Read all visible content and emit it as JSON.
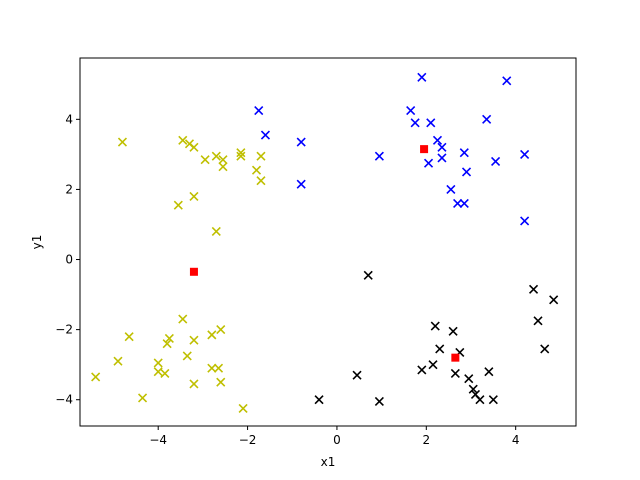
{
  "chart_data": {
    "type": "scatter",
    "xlabel": "x1",
    "ylabel": "y1",
    "xlim": [
      -5.75,
      5.35
    ],
    "ylim": [
      -4.75,
      5.75
    ],
    "xticks": [
      -4,
      -2,
      0,
      2,
      4
    ],
    "yticks": [
      -4,
      -2,
      0,
      2,
      4
    ],
    "grid": false,
    "series": [
      {
        "color": "#bfbf00",
        "marker": "x",
        "points": [
          [
            -4.8,
            3.35
          ],
          [
            -3.45,
            3.4
          ],
          [
            -3.3,
            3.3
          ],
          [
            -3.2,
            3.2
          ],
          [
            -2.95,
            2.85
          ],
          [
            -2.7,
            2.95
          ],
          [
            -2.55,
            2.85
          ],
          [
            -2.55,
            2.65
          ],
          [
            -2.15,
            3.05
          ],
          [
            -2.15,
            2.95
          ],
          [
            -1.8,
            2.55
          ],
          [
            -1.7,
            2.25
          ],
          [
            -1.7,
            2.95
          ],
          [
            -3.55,
            1.55
          ],
          [
            -3.2,
            1.8
          ],
          [
            -2.7,
            0.8
          ],
          [
            -4.65,
            -2.2
          ],
          [
            -3.45,
            -1.7
          ],
          [
            -3.75,
            -2.25
          ],
          [
            -3.8,
            -2.4
          ],
          [
            -2.8,
            -2.15
          ],
          [
            -2.6,
            -2.0
          ],
          [
            -3.2,
            -2.3
          ],
          [
            -4.9,
            -2.9
          ],
          [
            -4.0,
            -2.95
          ],
          [
            -3.35,
            -2.75
          ],
          [
            -4.0,
            -3.2
          ],
          [
            -3.85,
            -3.25
          ],
          [
            -2.8,
            -3.1
          ],
          [
            -2.65,
            -3.1
          ],
          [
            -5.4,
            -3.35
          ],
          [
            -3.2,
            -3.55
          ],
          [
            -2.6,
            -3.5
          ],
          [
            -4.35,
            -3.95
          ],
          [
            -2.1,
            -4.25
          ]
        ]
      },
      {
        "color": "#0000ff",
        "marker": "x",
        "points": [
          [
            -1.75,
            4.25
          ],
          [
            -1.6,
            3.55
          ],
          [
            -0.8,
            3.35
          ],
          [
            -0.8,
            2.15
          ],
          [
            0.95,
            2.95
          ],
          [
            1.65,
            4.25
          ],
          [
            1.9,
            5.2
          ],
          [
            1.75,
            3.9
          ],
          [
            2.1,
            3.9
          ],
          [
            2.25,
            3.4
          ],
          [
            2.35,
            3.2
          ],
          [
            2.35,
            2.9
          ],
          [
            2.05,
            2.75
          ],
          [
            2.85,
            3.05
          ],
          [
            2.55,
            2.0
          ],
          [
            2.7,
            1.6
          ],
          [
            2.85,
            1.6
          ],
          [
            2.9,
            2.5
          ],
          [
            3.35,
            4.0
          ],
          [
            3.55,
            2.8
          ],
          [
            3.8,
            5.1
          ],
          [
            4.2,
            3.0
          ],
          [
            4.2,
            1.1
          ]
        ]
      },
      {
        "color": "#000000",
        "marker": "x",
        "points": [
          [
            0.7,
            -0.45
          ],
          [
            -0.4,
            -4.0
          ],
          [
            0.45,
            -3.3
          ],
          [
            0.95,
            -4.05
          ],
          [
            1.9,
            -3.15
          ],
          [
            2.2,
            -1.9
          ],
          [
            2.15,
            -3.0
          ],
          [
            2.3,
            -2.55
          ],
          [
            2.6,
            -2.05
          ],
          [
            2.75,
            -2.65
          ],
          [
            2.65,
            -3.25
          ],
          [
            2.95,
            -3.4
          ],
          [
            3.05,
            -3.7
          ],
          [
            3.1,
            -3.85
          ],
          [
            3.2,
            -4.0
          ],
          [
            3.4,
            -3.2
          ],
          [
            3.5,
            -4.0
          ],
          [
            4.4,
            -0.85
          ],
          [
            4.5,
            -1.75
          ],
          [
            4.65,
            -2.55
          ],
          [
            4.85,
            -1.15
          ]
        ]
      },
      {
        "color": "#ff0000",
        "marker": "square",
        "points": [
          [
            -3.2,
            -0.35
          ],
          [
            1.95,
            3.15
          ],
          [
            2.65,
            -2.8
          ]
        ]
      }
    ]
  }
}
